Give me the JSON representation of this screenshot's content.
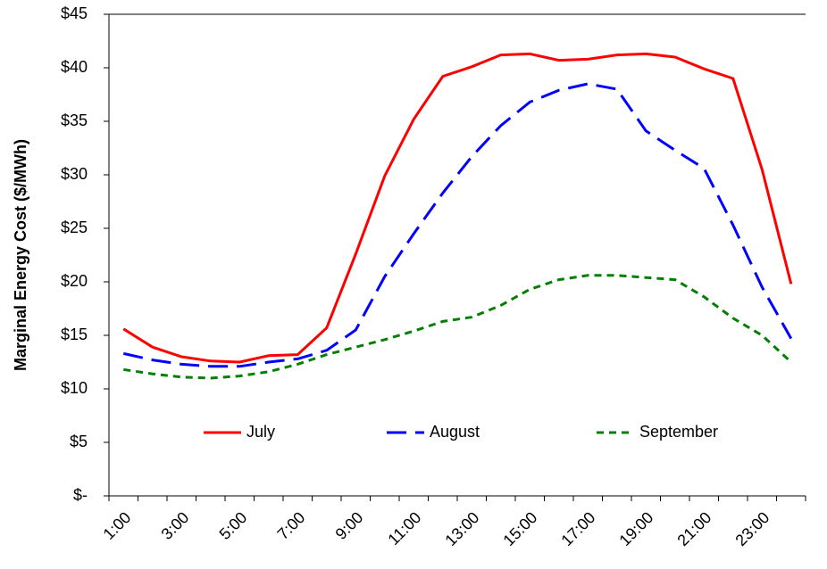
{
  "chart_data": {
    "type": "line",
    "y_label": "Marginal Energy Cost ($/MWh)",
    "categories": [
      "1:00",
      null,
      "3:00",
      null,
      "5:00",
      null,
      "7:00",
      null,
      "9:00",
      null,
      "11:00",
      null,
      "13:00",
      null,
      "15:00",
      null,
      "17:00",
      null,
      "19:00",
      null,
      "21:00",
      null,
      "23:00",
      null
    ],
    "series": [
      {
        "name": "July",
        "color": "#ff0000",
        "line_style": "solid",
        "values": [
          15.6,
          13.9,
          13.0,
          12.6,
          12.5,
          13.1,
          13.2,
          15.7,
          22.6,
          29.9,
          35.2,
          39.2,
          40.1,
          41.2,
          41.3,
          40.7,
          40.8,
          41.2,
          41.3,
          41.0,
          39.9,
          39.0,
          30.5,
          19.8
        ]
      },
      {
        "name": "August",
        "color": "#0000ff",
        "line_style": "long-dash",
        "values": [
          13.3,
          12.7,
          12.3,
          12.1,
          12.1,
          12.5,
          12.8,
          13.6,
          15.5,
          20.5,
          24.5,
          28.3,
          31.7,
          34.6,
          36.8,
          37.9,
          38.5,
          38.0,
          34.1,
          32.3,
          30.6,
          25.3,
          19.5,
          14.7
        ]
      },
      {
        "name": "September",
        "color": "#008000",
        "line_style": "short-dash",
        "values": [
          11.8,
          11.4,
          11.1,
          11.0,
          11.2,
          11.6,
          12.3,
          13.2,
          13.9,
          14.6,
          15.4,
          16.3,
          16.7,
          17.8,
          19.3,
          20.2,
          20.6,
          20.6,
          20.4,
          20.2,
          18.6,
          16.6,
          15.0,
          12.5
        ]
      }
    ],
    "ylim": [
      0,
      45
    ],
    "yticks": [
      {
        "value": 0,
        "label": "$-"
      },
      {
        "value": 5,
        "label": "$5"
      },
      {
        "value": 10,
        "label": "$10"
      },
      {
        "value": 15,
        "label": "$15"
      },
      {
        "value": 20,
        "label": "$20"
      },
      {
        "value": 25,
        "label": "$25"
      },
      {
        "value": 30,
        "label": "$30"
      },
      {
        "value": 35,
        "label": "$35"
      },
      {
        "value": 40,
        "label": "$40"
      },
      {
        "value": 45,
        "label": "$45"
      }
    ],
    "grid": false,
    "legend": "bottom"
  }
}
